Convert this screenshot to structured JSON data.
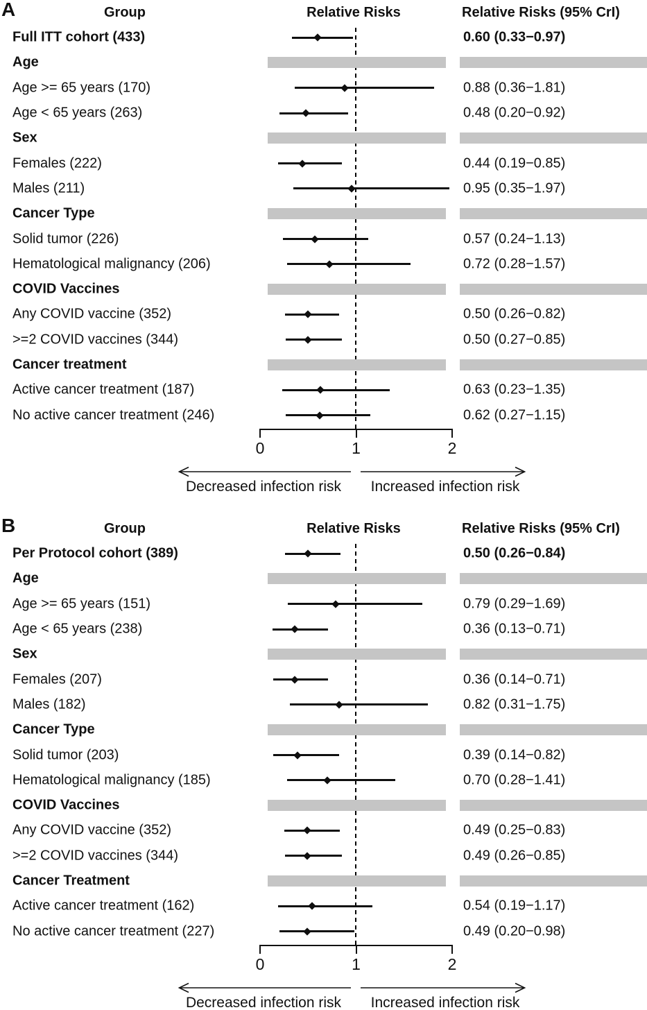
{
  "colors": {
    "section_bar": "#c5c5c5",
    "ink": "#111111",
    "background": "#ffffff"
  },
  "chart_data": [
    {
      "type": "forest",
      "panel_label": "A",
      "columns": {
        "group": "Group",
        "plot": "Relative Risks",
        "values": "Relative Risks (95% CrI)"
      },
      "axis": {
        "ticks": [
          "0",
          "1",
          "2"
        ],
        "min": 0,
        "max": 2,
        "reference": 1
      },
      "arrows": {
        "left": "Decreased infection risk",
        "right": "Increased infection risk"
      },
      "rows": [
        {
          "kind": "summary",
          "label": "Full ITT cohort (433)",
          "value_text": "0.60 (0.33−0.97)",
          "estimate": 0.6,
          "ci_low": 0.33,
          "ci_high": 0.97
        },
        {
          "kind": "section",
          "label": "Age"
        },
        {
          "kind": "data",
          "label": "Age >= 65 years (170)",
          "value_text": "0.88 (0.36−1.81)",
          "estimate": 0.88,
          "ci_low": 0.36,
          "ci_high": 1.81
        },
        {
          "kind": "data",
          "label": "Age < 65 years (263)",
          "value_text": "0.48 (0.20−0.92)",
          "estimate": 0.48,
          "ci_low": 0.2,
          "ci_high": 0.92
        },
        {
          "kind": "section",
          "label": "Sex"
        },
        {
          "kind": "data",
          "label": "Females (222)",
          "value_text": "0.44 (0.19−0.85)",
          "estimate": 0.44,
          "ci_low": 0.19,
          "ci_high": 0.85
        },
        {
          "kind": "data",
          "label": "Males (211)",
          "value_text": "0.95 (0.35−1.97)",
          "estimate": 0.95,
          "ci_low": 0.35,
          "ci_high": 1.97
        },
        {
          "kind": "section",
          "label": "Cancer Type"
        },
        {
          "kind": "data",
          "label": "Solid tumor (226)",
          "value_text": "0.57 (0.24−1.13)",
          "estimate": 0.57,
          "ci_low": 0.24,
          "ci_high": 1.13
        },
        {
          "kind": "data",
          "label": "Hematological malignancy (206)",
          "value_text": "0.72 (0.28−1.57)",
          "estimate": 0.72,
          "ci_low": 0.28,
          "ci_high": 1.57
        },
        {
          "kind": "section",
          "label": "COVID Vaccines"
        },
        {
          "kind": "data",
          "label": "Any COVID vaccine (352)",
          "value_text": "0.50 (0.26−0.82)",
          "estimate": 0.5,
          "ci_low": 0.26,
          "ci_high": 0.82
        },
        {
          "kind": "data",
          "label": ">=2 COVID vaccines (344)",
          "value_text": "0.50 (0.27−0.85)",
          "estimate": 0.5,
          "ci_low": 0.27,
          "ci_high": 0.85
        },
        {
          "kind": "section",
          "label": "Cancer treatment"
        },
        {
          "kind": "data",
          "label": "Active cancer treatment (187)",
          "value_text": "0.63 (0.23−1.35)",
          "estimate": 0.63,
          "ci_low": 0.23,
          "ci_high": 1.35
        },
        {
          "kind": "data",
          "label": "No active cancer treatment (246)",
          "value_text": "0.62 (0.27−1.15)",
          "estimate": 0.62,
          "ci_low": 0.27,
          "ci_high": 1.15
        }
      ]
    },
    {
      "type": "forest",
      "panel_label": "B",
      "columns": {
        "group": "Group",
        "plot": "Relative Risks",
        "values": "Relative Risks (95% CrI)"
      },
      "axis": {
        "ticks": [
          "0",
          "1",
          "2"
        ],
        "min": 0,
        "max": 2,
        "reference": 1
      },
      "arrows": {
        "left": "Decreased infection risk",
        "right": "Increased infection risk"
      },
      "rows": [
        {
          "kind": "summary",
          "label": "Per Protocol cohort (389)",
          "value_text": "0.50 (0.26−0.84)",
          "estimate": 0.5,
          "ci_low": 0.26,
          "ci_high": 0.84
        },
        {
          "kind": "section",
          "label": "Age"
        },
        {
          "kind": "data",
          "label": "Age >= 65 years (151)",
          "value_text": "0.79 (0.29−1.69)",
          "estimate": 0.79,
          "ci_low": 0.29,
          "ci_high": 1.69
        },
        {
          "kind": "data",
          "label": "Age < 65 years (238)",
          "value_text": "0.36 (0.13−0.71)",
          "estimate": 0.36,
          "ci_low": 0.13,
          "ci_high": 0.71
        },
        {
          "kind": "section",
          "label": "Sex"
        },
        {
          "kind": "data",
          "label": "Females (207)",
          "value_text": "0.36 (0.14−0.71)",
          "estimate": 0.36,
          "ci_low": 0.14,
          "ci_high": 0.71
        },
        {
          "kind": "data",
          "label": "Males (182)",
          "value_text": "0.82 (0.31−1.75)",
          "estimate": 0.82,
          "ci_low": 0.31,
          "ci_high": 1.75
        },
        {
          "kind": "section",
          "label": "Cancer Type"
        },
        {
          "kind": "data",
          "label": "Solid tumor (203)",
          "value_text": "0.39 (0.14−0.82)",
          "estimate": 0.39,
          "ci_low": 0.14,
          "ci_high": 0.82
        },
        {
          "kind": "data",
          "label": "Hematological malignancy (185)",
          "value_text": "0.70 (0.28−1.41)",
          "estimate": 0.7,
          "ci_low": 0.28,
          "ci_high": 1.41
        },
        {
          "kind": "section",
          "label": "COVID Vaccines"
        },
        {
          "kind": "data",
          "label": "Any COVID vaccine (352)",
          "value_text": "0.49 (0.25−0.83)",
          "estimate": 0.49,
          "ci_low": 0.25,
          "ci_high": 0.83
        },
        {
          "kind": "data",
          "label": ">=2 COVID vaccines (344)",
          "value_text": "0.49 (0.26−0.85)",
          "estimate": 0.49,
          "ci_low": 0.26,
          "ci_high": 0.85
        },
        {
          "kind": "section",
          "label": "Cancer Treatment"
        },
        {
          "kind": "data",
          "label": "Active cancer treatment (162)",
          "value_text": "0.54 (0.19−1.17)",
          "estimate": 0.54,
          "ci_low": 0.19,
          "ci_high": 1.17
        },
        {
          "kind": "data",
          "label": "No active cancer treatment (227)",
          "value_text": "0.49 (0.20−0.98)",
          "estimate": 0.49,
          "ci_low": 0.2,
          "ci_high": 0.98
        }
      ]
    }
  ]
}
